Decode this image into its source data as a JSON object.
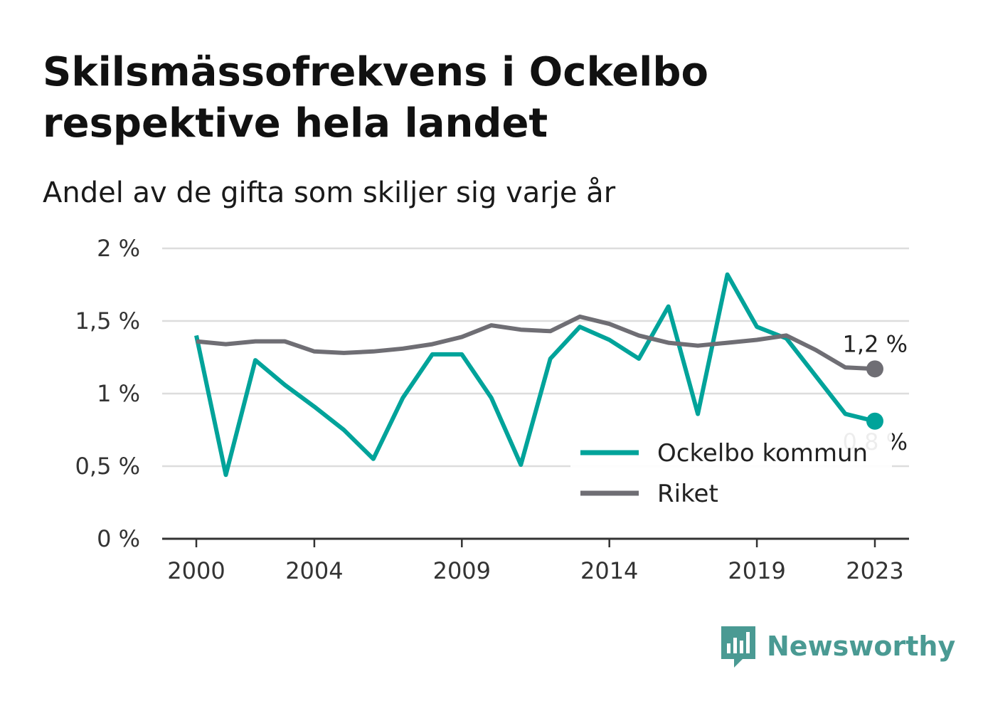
{
  "header": {
    "title": "Skilsmässofrekvens i Ockelbo respektive hela landet",
    "subtitle": "Andel av de gifta som skiljer sig varje år"
  },
  "brand": {
    "name": "Newsworthy",
    "icon": "newsworthy-bar-chart-icon",
    "color": "#4a9a93"
  },
  "chart_data": {
    "type": "line",
    "x": [
      2000,
      2001,
      2002,
      2003,
      2004,
      2005,
      2006,
      2007,
      2008,
      2009,
      2010,
      2011,
      2012,
      2013,
      2014,
      2015,
      2016,
      2017,
      2018,
      2019,
      2020,
      2021,
      2022,
      2023
    ],
    "series": [
      {
        "name": "Ockelbo kommun",
        "color": "#00a39a",
        "values": [
          1.4,
          0.44,
          1.23,
          1.06,
          0.91,
          0.75,
          0.55,
          0.97,
          1.27,
          1.27,
          0.97,
          0.51,
          1.24,
          1.46,
          1.37,
          1.24,
          1.6,
          0.86,
          1.82,
          1.46,
          1.38,
          1.12,
          0.86,
          0.81
        ],
        "end_label": "0,8 %"
      },
      {
        "name": "Riket",
        "color": "#6f6e74",
        "values": [
          1.36,
          1.34,
          1.36,
          1.36,
          1.29,
          1.28,
          1.29,
          1.31,
          1.34,
          1.39,
          1.47,
          1.44,
          1.43,
          1.53,
          1.48,
          1.4,
          1.35,
          1.33,
          1.35,
          1.37,
          1.4,
          1.3,
          1.18,
          1.17
        ],
        "end_label": "1,2 %"
      }
    ],
    "x_ticks": [
      2000,
      2004,
      2009,
      2014,
      2019,
      2023
    ],
    "x_tick_labels": [
      "2000",
      "2004",
      "2009",
      "2014",
      "2019",
      "2023"
    ],
    "y_ticks": [
      0,
      0.5,
      1,
      1.5,
      2
    ],
    "y_tick_labels": [
      "0 %",
      "0,5 %",
      "1 %",
      "1,5 %",
      "2 %"
    ],
    "xlim": [
      2000,
      2023
    ],
    "ylim": [
      0,
      2
    ],
    "grid": true,
    "legend_position": "bottom-right"
  }
}
